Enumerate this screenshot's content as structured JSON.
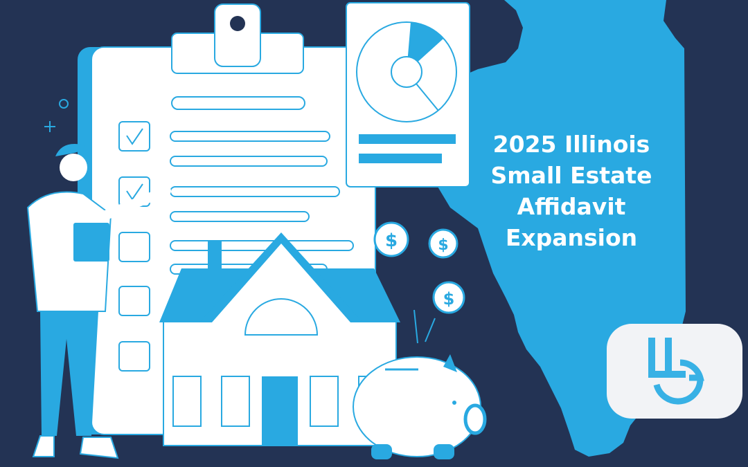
{
  "title": {
    "lines": [
      "2025 Illinois",
      "Small Estate",
      "Affidavit",
      "Expansion"
    ]
  },
  "logo": {
    "lettering": "LLG"
  },
  "icons": [
    "clipboard-icon",
    "check-icon",
    "pie-chart-icon",
    "dollar-coin-icon",
    "house-icon",
    "piggy-bank-icon",
    "person-icon",
    "illinois-map-icon"
  ],
  "colors": {
    "background": "#233354",
    "accent": "#29a9e1",
    "paper": "#ffffff",
    "logo_bg": "#f2f3f6"
  },
  "coins": {
    "symbol": "$"
  }
}
